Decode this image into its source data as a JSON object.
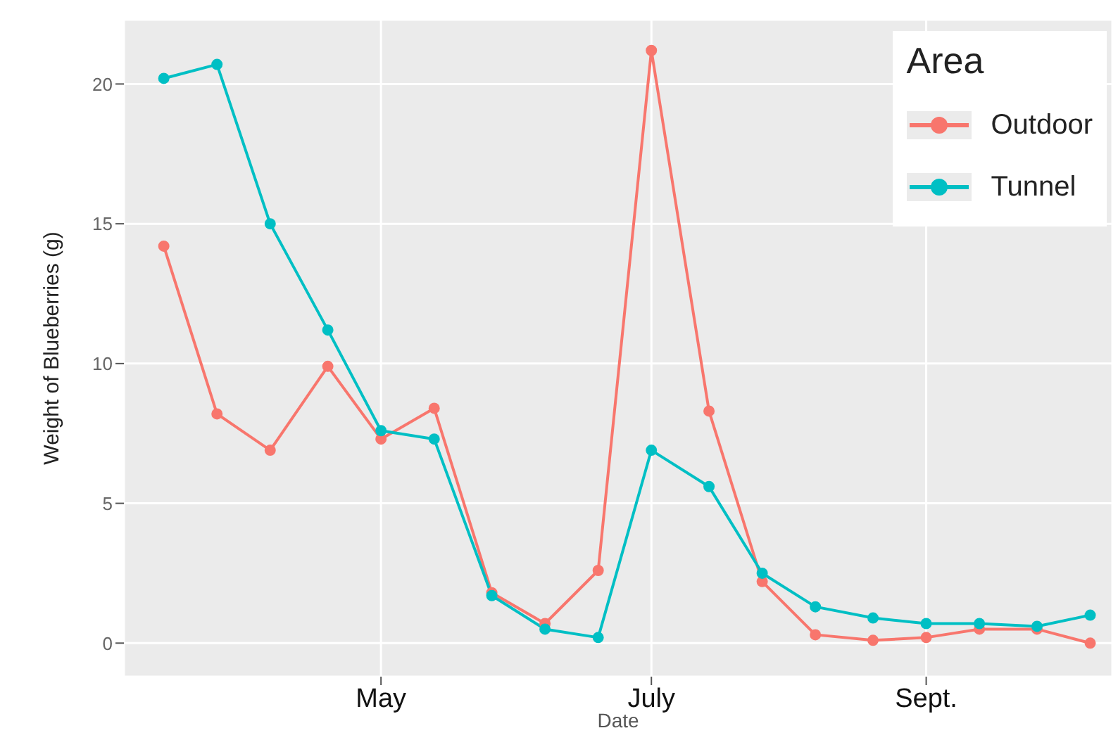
{
  "chart_data": {
    "type": "line",
    "xlabel": "Date",
    "ylabel": "Weight of Blueberries (g)",
    "legend_title": "Area",
    "x": [
      "--03-13",
      "--03-25",
      "--04-06",
      "--04-19",
      "--05-01",
      "--05-13",
      "--05-26",
      "--06-07",
      "--06-19",
      "--07-01",
      "--07-14",
      "--07-26",
      "--08-07",
      "--08-20",
      "--09-01",
      "--09-13",
      "--09-26",
      "--10-08"
    ],
    "series": [
      {
        "name": "Outdoor",
        "color": "#f8766d",
        "values": [
          14.2,
          8.2,
          6.9,
          9.9,
          7.3,
          8.4,
          1.8,
          0.7,
          2.6,
          21.2,
          8.3,
          2.2,
          0.3,
          0.1,
          0.2,
          0.5,
          0.5,
          0.0
        ]
      },
      {
        "name": "Tunnel",
        "color": "#00bfc4",
        "values": [
          20.2,
          20.7,
          15.0,
          11.2,
          7.6,
          7.3,
          1.7,
          0.5,
          0.2,
          6.9,
          5.6,
          2.5,
          1.3,
          0.9,
          0.7,
          0.7,
          0.6,
          1.0
        ]
      }
    ],
    "xlim": [
      "--03-04",
      "--10-13"
    ],
    "xticks": [
      {
        "value": "--05-01",
        "label": "May"
      },
      {
        "value": "--07-01",
        "label": "July"
      },
      {
        "value": "--09-01",
        "label": "Sept."
      }
    ],
    "ylim": [
      -1.2,
      22.3
    ],
    "yticks": [
      0,
      5,
      10,
      15,
      20
    ],
    "grid": true,
    "legend": "top right",
    "marker": "circle",
    "line_style": "solid"
  }
}
